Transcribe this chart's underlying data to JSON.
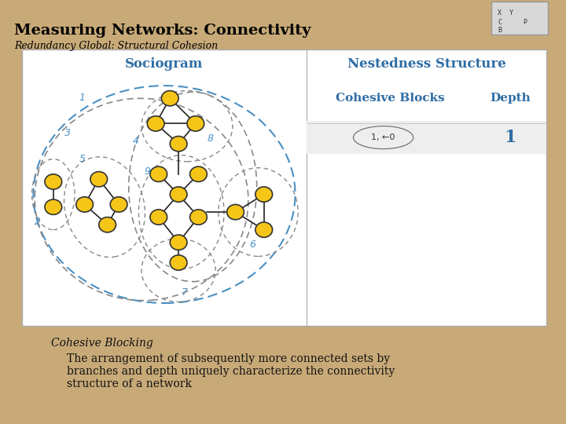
{
  "bg_color": "#c8aa78",
  "panel_bg": "#ffffff",
  "title": "Measuring Networks: Connectivity",
  "subtitle": "Redundancy Global: Structural Cohesion",
  "title_color": "#000000",
  "subtitle_color": "#000000",
  "panel_title_color": "#2e6da4",
  "sociogram_title": "Sociogram",
  "nestedness_title": "Nestedness Structure",
  "cohesive_blocks_label": "Cohesive Blocks",
  "depth_label": "Depth",
  "depth_value": "1",
  "ellipse_label": "1, ←0",
  "bottom_title": "Cohesive Blocking",
  "bottom_text": "The arrangement of subsequently more connected sets by\nbranches and depth uniquely characterize the connectivity\nstructure of a network",
  "node_color": "#f5c518",
  "node_edge_color": "#333333",
  "contour_color_outer": "#4a90c4",
  "contour_color_inner": "#888888",
  "edge_color": "#222222",
  "box_bg": "#d8d8d8",
  "row_bg": "#eeeeee"
}
